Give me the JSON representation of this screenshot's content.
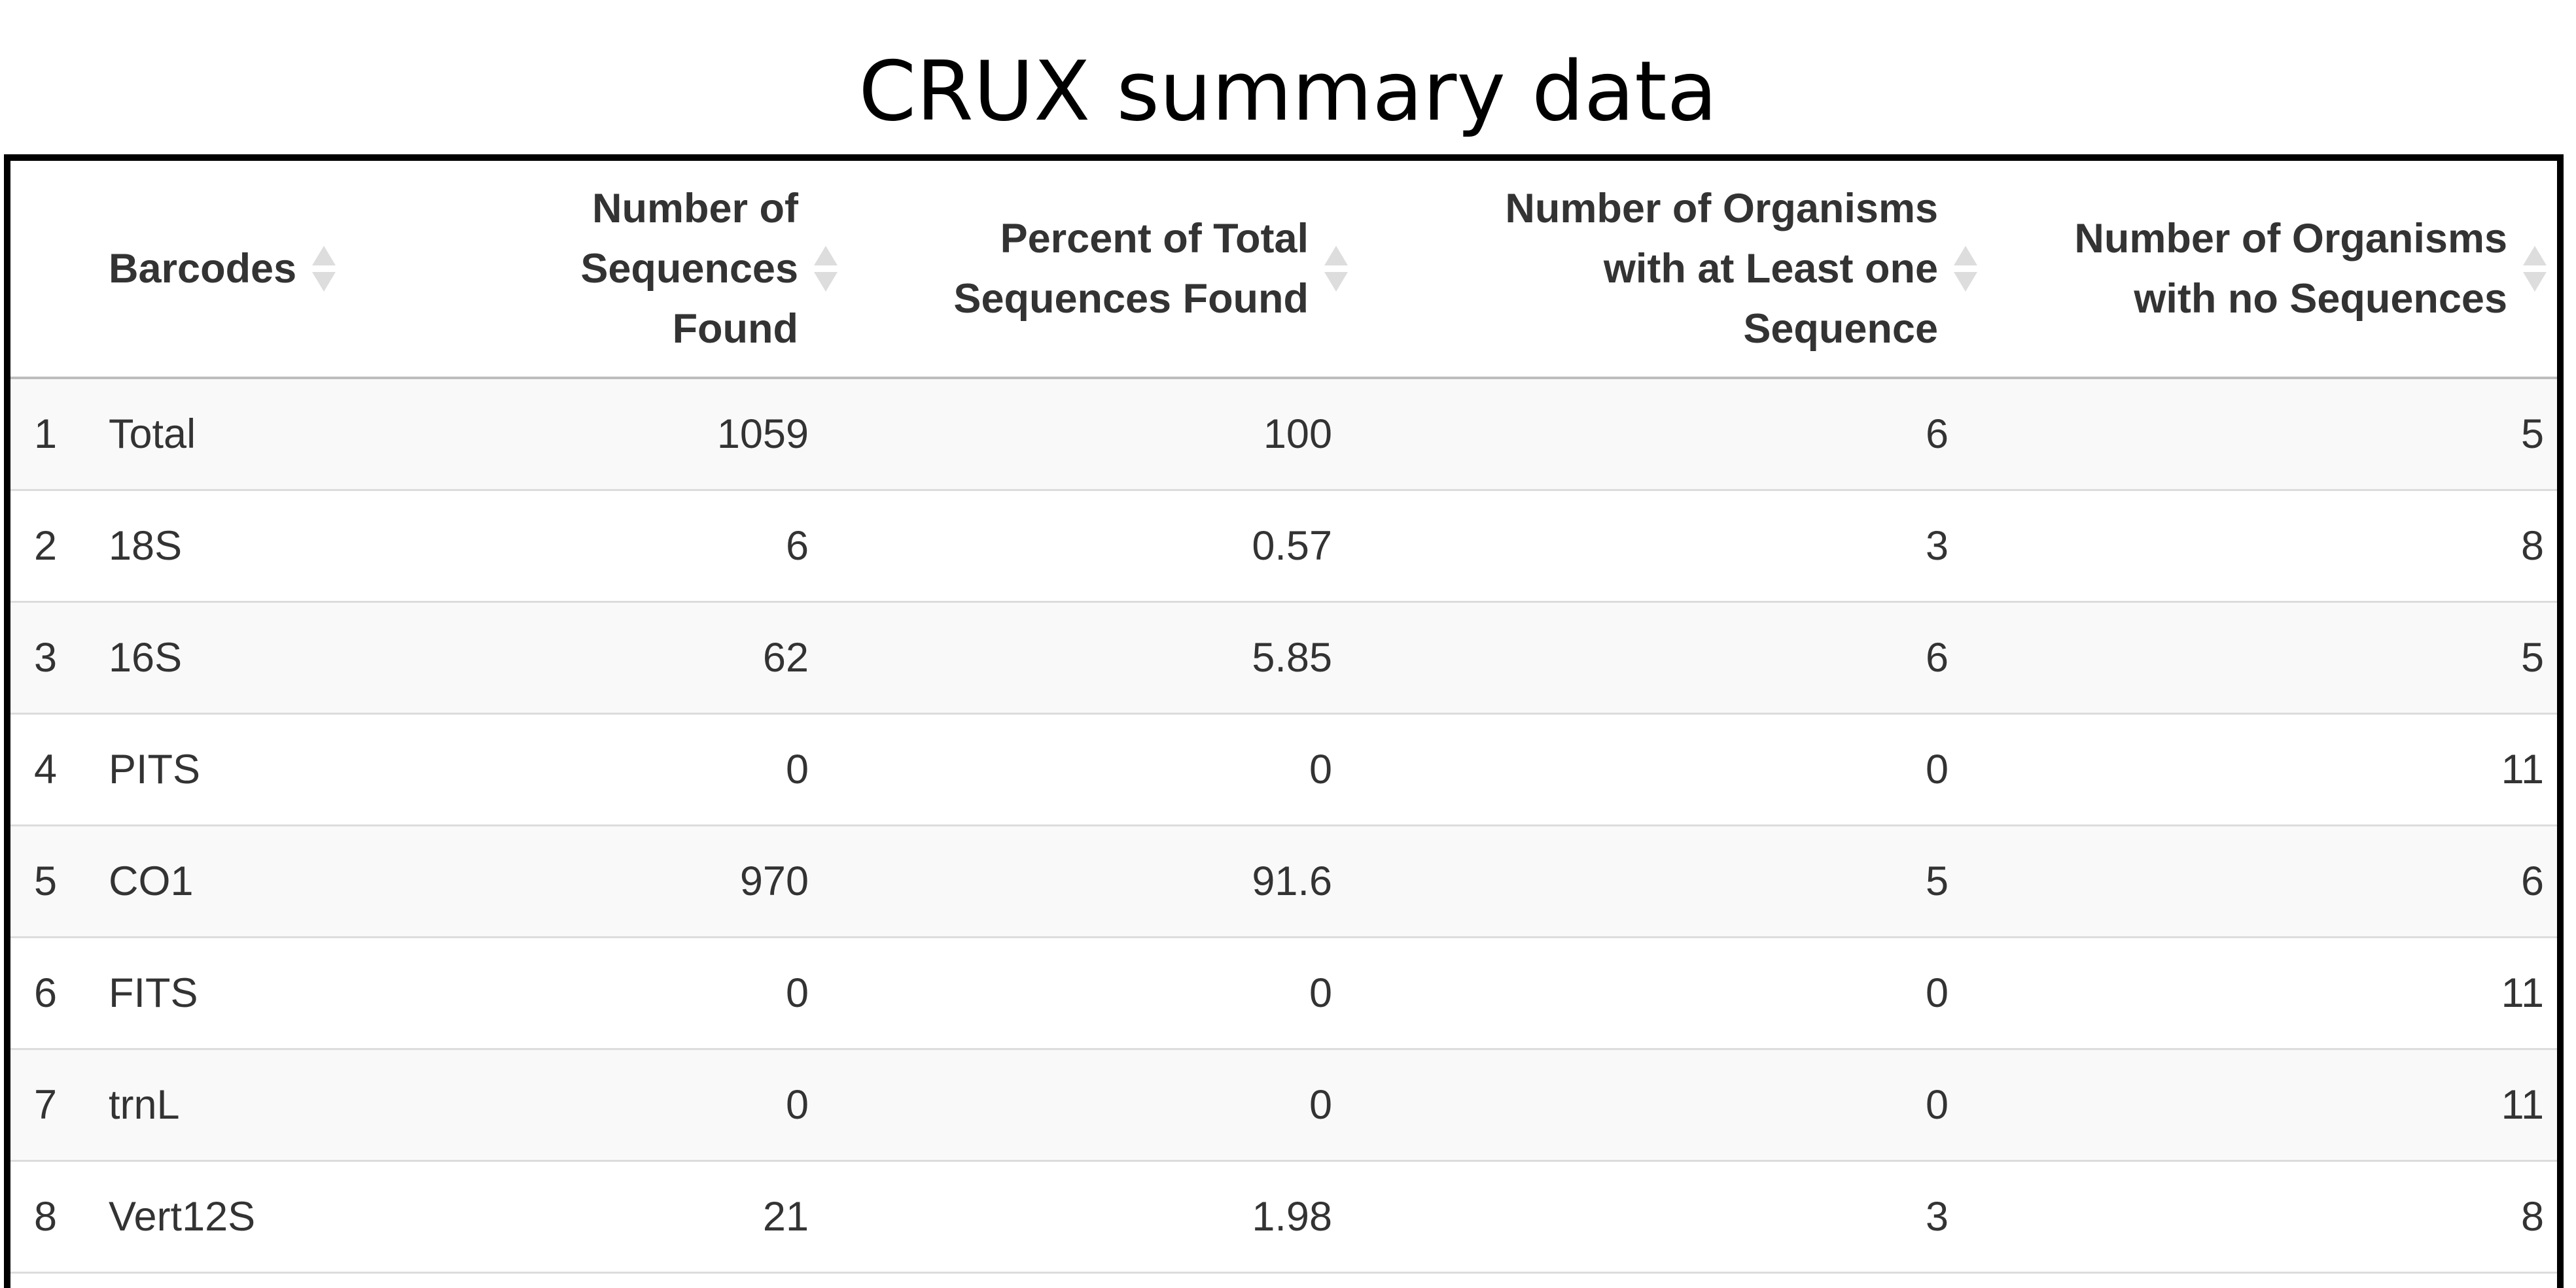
{
  "title": "CRUX summary data",
  "table": {
    "headers": [
      {
        "label": "",
        "sortable": false
      },
      {
        "label": "Barcodes",
        "sortable": true
      },
      {
        "label": "Number of Sequences Found",
        "sortable": true
      },
      {
        "label": "Percent of Total Sequences Found",
        "sortable": true
      },
      {
        "label": "Number of Organisms with at Least one Sequence",
        "sortable": true
      },
      {
        "label": "Number of Organisms with no Sequences",
        "sortable": true
      }
    ],
    "rows": [
      {
        "index": "1",
        "barcode": "Total",
        "sequences": "1059",
        "percent": "100",
        "orgs_with": "6",
        "orgs_without": "5"
      },
      {
        "index": "2",
        "barcode": "18S",
        "sequences": "6",
        "percent": "0.57",
        "orgs_with": "3",
        "orgs_without": "8"
      },
      {
        "index": "3",
        "barcode": "16S",
        "sequences": "62",
        "percent": "5.85",
        "orgs_with": "6",
        "orgs_without": "5"
      },
      {
        "index": "4",
        "barcode": "PITS",
        "sequences": "0",
        "percent": "0",
        "orgs_with": "0",
        "orgs_without": "11"
      },
      {
        "index": "5",
        "barcode": "CO1",
        "sequences": "970",
        "percent": "91.6",
        "orgs_with": "5",
        "orgs_without": "6"
      },
      {
        "index": "6",
        "barcode": "FITS",
        "sequences": "0",
        "percent": "0",
        "orgs_with": "0",
        "orgs_without": "11"
      },
      {
        "index": "7",
        "barcode": "trnL",
        "sequences": "0",
        "percent": "0",
        "orgs_with": "0",
        "orgs_without": "11"
      },
      {
        "index": "8",
        "barcode": "Vert12S",
        "sequences": "21",
        "percent": "1.98",
        "orgs_with": "3",
        "orgs_without": "8"
      }
    ]
  },
  "icons": {
    "sort": "sort-arrows-icon"
  },
  "colors": {
    "header_border": "#bdbdbd",
    "row_border": "#dcdcdc",
    "stripe": "#f9f9f9",
    "sort_icon": "#dddddd",
    "frame": "#000000"
  }
}
